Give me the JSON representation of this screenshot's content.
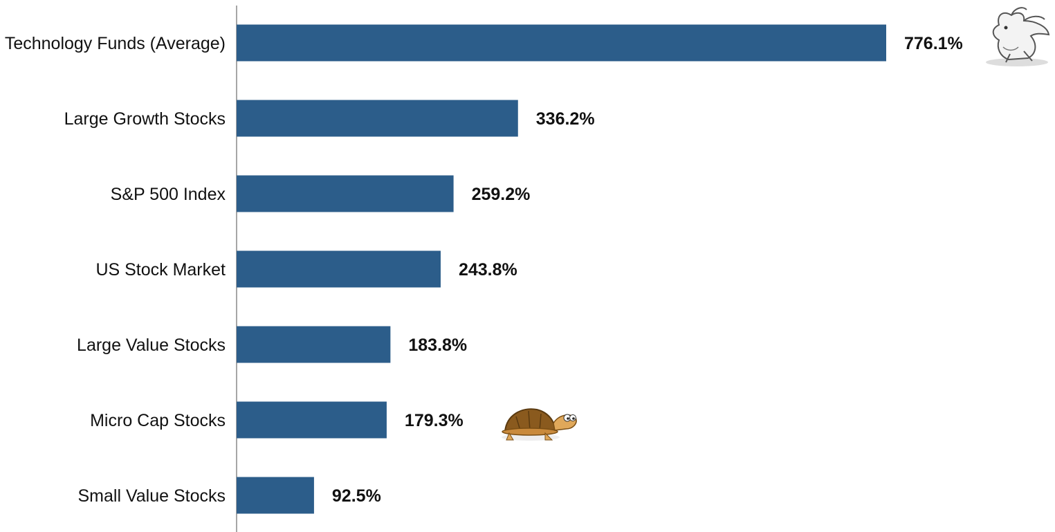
{
  "chart_data": {
    "type": "bar",
    "orientation": "horizontal",
    "categories": [
      "Technology Funds (Average)",
      "Large Growth Stocks",
      "S&P 500 Index",
      "US Stock Market",
      "Large Value Stocks",
      "Micro Cap Stocks",
      "Small Value Stocks"
    ],
    "values": [
      776.1,
      336.2,
      259.2,
      243.8,
      183.8,
      179.3,
      92.5
    ],
    "data_labels": [
      "776.1%",
      "336.2%",
      "259.2%",
      "243.8%",
      "183.8%",
      "179.3%",
      "92.5%"
    ],
    "value_unit": "%",
    "xlim": [
      0,
      776.1
    ],
    "grid": false,
    "legend": "none",
    "bar_color": "#2c5d8a",
    "axis_color": "#888888",
    "illustrations": [
      {
        "icon": "rabbit-icon",
        "beside": "Technology Funds (Average)"
      },
      {
        "icon": "turtle-icon",
        "beside": "Micro Cap Stocks"
      }
    ]
  }
}
